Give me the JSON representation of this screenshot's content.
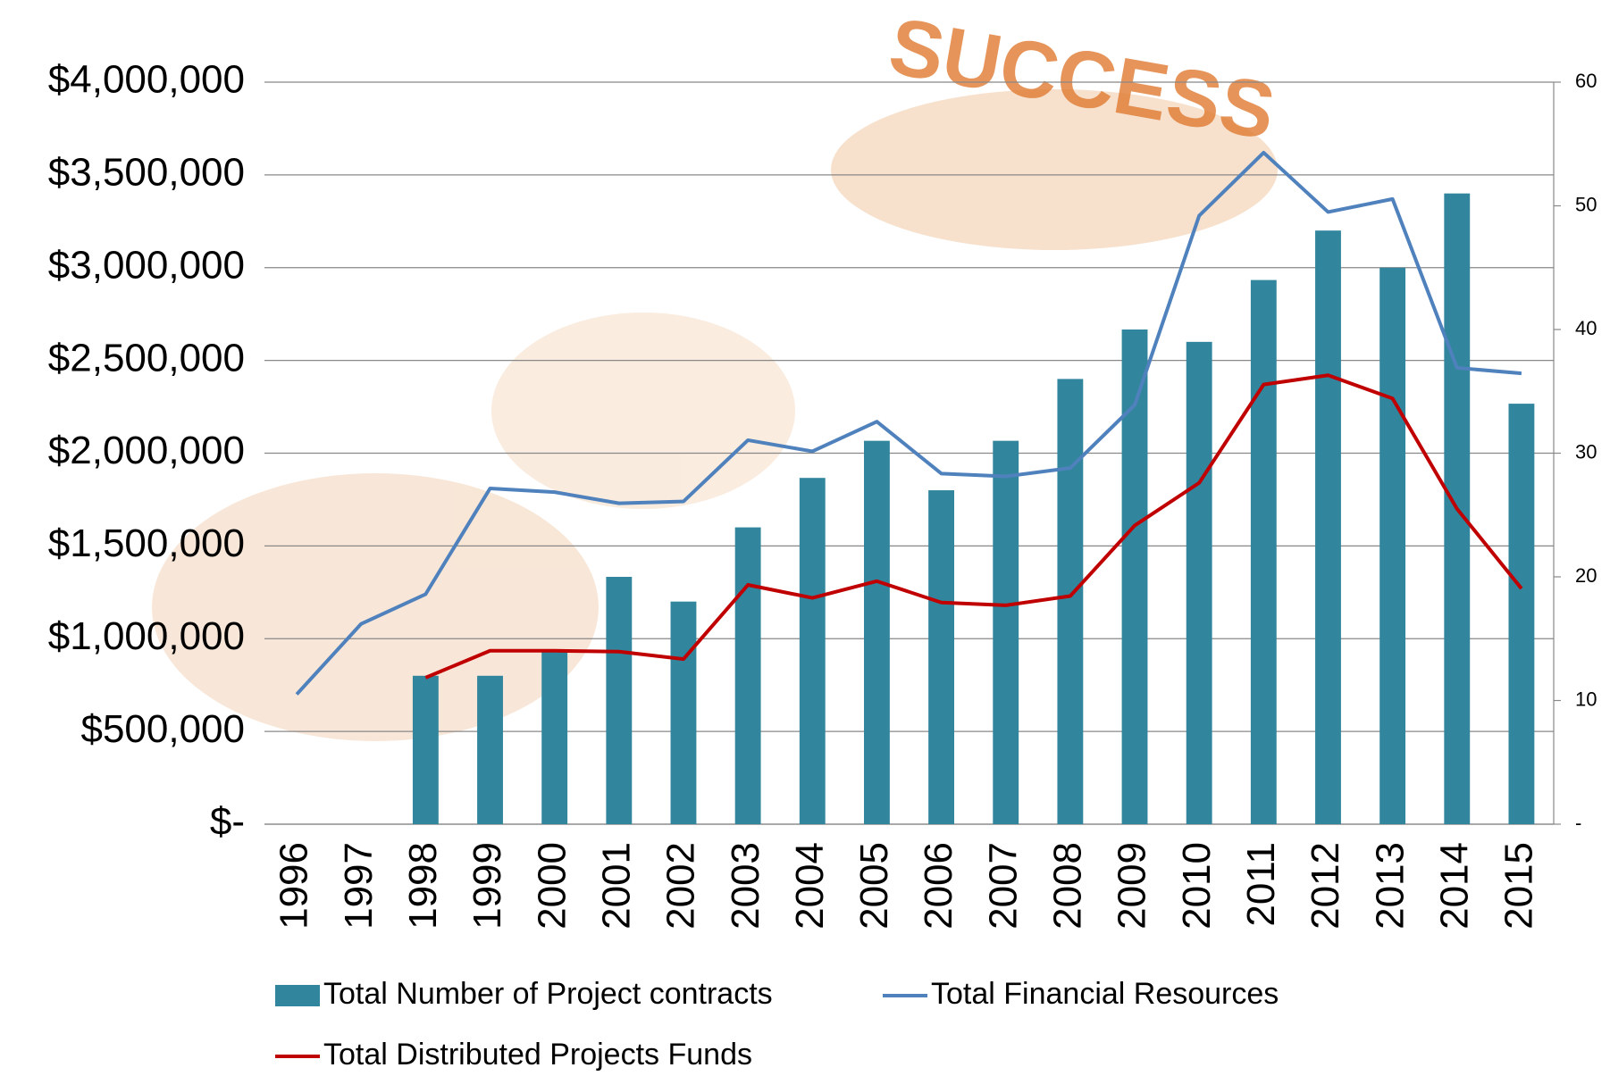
{
  "chart_data": {
    "type": "bar-line",
    "annotation": "SUCCESS",
    "categories": [
      "1996",
      "1997",
      "1998",
      "1999",
      "2000",
      "2001",
      "2002",
      "2003",
      "2004",
      "2005",
      "2006",
      "2007",
      "2008",
      "2009",
      "2010",
      "2011",
      "2012",
      "2013",
      "2014",
      "2015"
    ],
    "series": [
      {
        "name": "Total Number of Project contracts",
        "type": "bar",
        "axis": "y2",
        "color": "#31859c",
        "values": [
          null,
          null,
          12,
          12,
          14,
          20,
          18,
          24,
          28,
          31,
          27,
          31,
          36,
          40,
          39,
          44,
          48,
          45,
          51,
          34
        ]
      },
      {
        "name": "Total Financial Resources",
        "type": "line",
        "color": "#4f81bd",
        "values": [
          700000,
          1080000,
          1240000,
          1810000,
          1790000,
          1730000,
          1740000,
          2070000,
          2010000,
          2170000,
          1890000,
          1875000,
          1920000,
          2260000,
          3280000,
          3620000,
          3300000,
          3370000,
          2460000,
          2430000
        ]
      },
      {
        "name": "Total Distributed Projects Funds",
        "type": "line",
        "color": "#c00000",
        "values": [
          null,
          null,
          790000,
          935000,
          935000,
          930000,
          890000,
          1290000,
          1220000,
          1310000,
          1195000,
          1180000,
          1230000,
          1610000,
          1840000,
          2370000,
          2420000,
          2295000,
          1700000,
          1270000
        ]
      }
    ],
    "ylim": [
      0,
      4000000
    ],
    "yticks": [
      {
        "value": 0,
        "label": "$-"
      },
      {
        "value": 500000,
        "label": "$500,000"
      },
      {
        "value": 1000000,
        "label": "$1,000,000"
      },
      {
        "value": 1500000,
        "label": "$1,500,000"
      },
      {
        "value": 2000000,
        "label": "$2,000,000"
      },
      {
        "value": 2500000,
        "label": "$2,500,000"
      },
      {
        "value": 3000000,
        "label": "$3,000,000"
      },
      {
        "value": 3500000,
        "label": "$3,500,000"
      },
      {
        "value": 4000000,
        "label": "$4,000,000"
      }
    ],
    "y2lim": [
      0,
      60
    ],
    "y2ticks": [
      {
        "value": 0,
        "label": "-"
      },
      10,
      20,
      30,
      40,
      50,
      60
    ],
    "grid": true
  }
}
